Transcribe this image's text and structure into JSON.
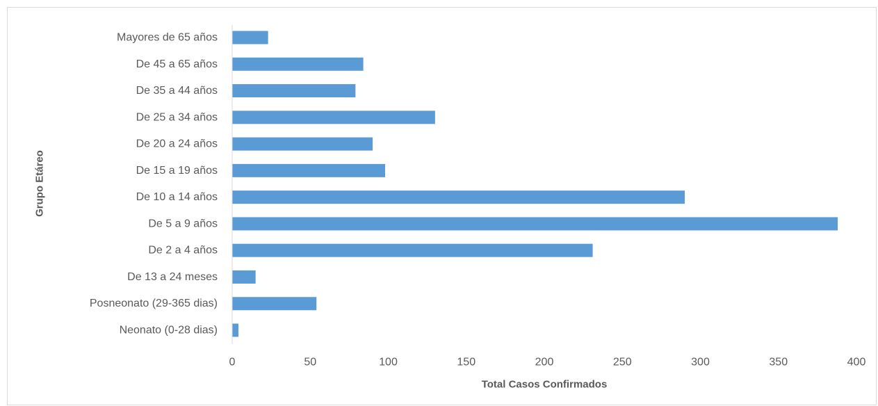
{
  "chart_data": {
    "type": "bar",
    "orientation": "horizontal",
    "categories": [
      "Neonato (0-28 dias)",
      "Posneonato (29-365 dias)",
      "De 13 a 24 meses",
      "De 2 a 4 años",
      "De 5 a 9 años",
      "De 10 a 14 años",
      "De 15 a 19 años",
      "De 20 a 24 años",
      "De 25 a 34 años",
      "De 35 a 44 años",
      "De 45 a 65 años",
      "Mayores de 65 años"
    ],
    "values": [
      4,
      54,
      15,
      231,
      388,
      290,
      98,
      90,
      130,
      79,
      84,
      23
    ],
    "title": "",
    "xlabel": "Total Casos Confirmados",
    "ylabel": "Grupo Etáreo",
    "xlim": [
      0,
      400
    ],
    "xticks": [
      0,
      50,
      100,
      150,
      200,
      250,
      300,
      350,
      400
    ],
    "grid": false,
    "legend": "none",
    "bar_color": "#5b9bd5"
  }
}
